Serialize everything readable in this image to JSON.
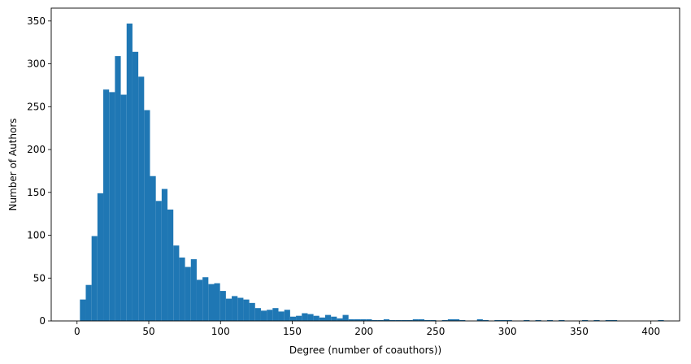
{
  "chart_data": {
    "type": "bar",
    "subtype": "histogram",
    "title": "",
    "xlabel": "Degree (number of coauthors))",
    "ylabel": "Number of Authors",
    "xlim": [
      -18,
      420
    ],
    "ylim": [
      0,
      365
    ],
    "xticks": [
      0,
      50,
      100,
      150,
      200,
      250,
      300,
      350,
      400
    ],
    "yticks": [
      0,
      50,
      100,
      150,
      200,
      250,
      300,
      350
    ],
    "grid": false,
    "bar_color": "#1f77b4",
    "bin_start": 2,
    "bin_width": 4.07,
    "values": [
      25,
      42,
      99,
      149,
      270,
      267,
      309,
      264,
      347,
      314,
      285,
      246,
      169,
      140,
      154,
      130,
      88,
      74,
      63,
      72,
      48,
      51,
      43,
      44,
      35,
      26,
      29,
      27,
      25,
      21,
      15,
      12,
      13,
      15,
      11,
      13,
      5,
      6,
      9,
      8,
      6,
      4,
      7,
      5,
      3,
      7,
      2,
      2,
      2,
      2,
      1,
      1,
      2,
      1,
      1,
      1,
      1,
      2,
      2,
      1,
      1,
      0,
      1,
      2,
      2,
      1,
      0,
      0,
      2,
      1,
      0,
      1,
      1,
      1,
      0,
      0,
      1,
      0,
      1,
      0,
      1,
      0,
      1,
      0,
      0,
      0,
      1,
      0,
      1,
      0,
      1,
      1,
      0,
      0,
      0,
      0,
      0,
      0,
      0,
      1
    ]
  }
}
